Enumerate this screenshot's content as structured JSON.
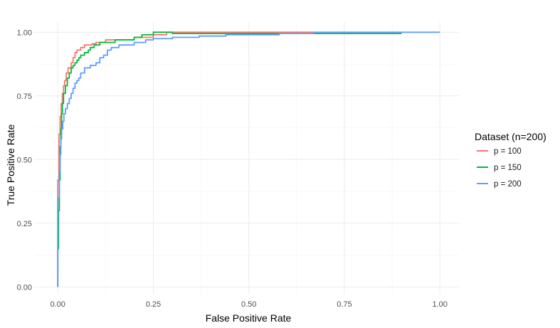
{
  "chart_data": {
    "type": "line",
    "title": "",
    "xlabel": "False Positive Rate",
    "ylabel": "True Positive Rate",
    "xlim": [
      -0.06,
      1.05
    ],
    "ylim": [
      -0.03,
      1.04
    ],
    "x_ticks": [
      0.0,
      0.25,
      0.5,
      0.75,
      1.0
    ],
    "x_tick_labels": [
      "0.00",
      "0.25",
      "0.50",
      "0.75",
      "1.00"
    ],
    "y_ticks": [
      0.0,
      0.25,
      0.5,
      0.75,
      1.0
    ],
    "y_tick_labels": [
      "0.00",
      "0.25",
      "0.50",
      "0.75",
      "1.00"
    ],
    "grid": true,
    "legend": {
      "title": "Dataset (n=200)",
      "placement": "right"
    },
    "series": [
      {
        "name": "p = 100",
        "color": "#F8766D",
        "points": [
          [
            0,
            0
          ],
          [
            0,
            0.42
          ],
          [
            0.003,
            0.42
          ],
          [
            0.003,
            0.6
          ],
          [
            0.006,
            0.6
          ],
          [
            0.006,
            0.67
          ],
          [
            0.009,
            0.67
          ],
          [
            0.009,
            0.72
          ],
          [
            0.012,
            0.72
          ],
          [
            0.012,
            0.76
          ],
          [
            0.015,
            0.76
          ],
          [
            0.015,
            0.79
          ],
          [
            0.018,
            0.79
          ],
          [
            0.018,
            0.81
          ],
          [
            0.022,
            0.81
          ],
          [
            0.022,
            0.84
          ],
          [
            0.027,
            0.84
          ],
          [
            0.027,
            0.86
          ],
          [
            0.035,
            0.86
          ],
          [
            0.035,
            0.88
          ],
          [
            0.04,
            0.88
          ],
          [
            0.04,
            0.9
          ],
          [
            0.045,
            0.9
          ],
          [
            0.045,
            0.92
          ],
          [
            0.05,
            0.92
          ],
          [
            0.05,
            0.93
          ],
          [
            0.06,
            0.93
          ],
          [
            0.06,
            0.94
          ],
          [
            0.07,
            0.94
          ],
          [
            0.07,
            0.95
          ],
          [
            0.09,
            0.95
          ],
          [
            0.09,
            0.955
          ],
          [
            0.1,
            0.955
          ],
          [
            0.1,
            0.96
          ],
          [
            0.125,
            0.96
          ],
          [
            0.125,
            0.97
          ],
          [
            0.2,
            0.97
          ],
          [
            0.2,
            0.98
          ],
          [
            0.25,
            0.98
          ],
          [
            0.25,
            0.99
          ],
          [
            0.285,
            0.99
          ],
          [
            0.285,
            1.0
          ],
          [
            0.67,
            1.0
          ]
        ]
      },
      {
        "name": "p = 150",
        "color": "#00BA38",
        "points": [
          [
            0,
            0
          ],
          [
            0,
            0.15
          ],
          [
            0.002,
            0.15
          ],
          [
            0.002,
            0.3
          ],
          [
            0.004,
            0.3
          ],
          [
            0.004,
            0.42
          ],
          [
            0.006,
            0.42
          ],
          [
            0.006,
            0.55
          ],
          [
            0.008,
            0.55
          ],
          [
            0.008,
            0.62
          ],
          [
            0.01,
            0.62
          ],
          [
            0.01,
            0.68
          ],
          [
            0.012,
            0.68
          ],
          [
            0.012,
            0.72
          ],
          [
            0.015,
            0.72
          ],
          [
            0.015,
            0.76
          ],
          [
            0.02,
            0.76
          ],
          [
            0.02,
            0.79
          ],
          [
            0.025,
            0.79
          ],
          [
            0.025,
            0.82
          ],
          [
            0.03,
            0.82
          ],
          [
            0.03,
            0.84
          ],
          [
            0.035,
            0.84
          ],
          [
            0.035,
            0.86
          ],
          [
            0.04,
            0.86
          ],
          [
            0.04,
            0.87
          ],
          [
            0.045,
            0.87
          ],
          [
            0.045,
            0.88
          ],
          [
            0.05,
            0.88
          ],
          [
            0.05,
            0.89
          ],
          [
            0.055,
            0.89
          ],
          [
            0.055,
            0.9
          ],
          [
            0.06,
            0.9
          ],
          [
            0.06,
            0.91
          ],
          [
            0.07,
            0.91
          ],
          [
            0.07,
            0.92
          ],
          [
            0.08,
            0.92
          ],
          [
            0.08,
            0.93
          ],
          [
            0.085,
            0.93
          ],
          [
            0.085,
            0.94
          ],
          [
            0.095,
            0.94
          ],
          [
            0.095,
            0.95
          ],
          [
            0.11,
            0.95
          ],
          [
            0.11,
            0.96
          ],
          [
            0.15,
            0.96
          ],
          [
            0.15,
            0.97
          ],
          [
            0.2,
            0.97
          ],
          [
            0.2,
            0.98
          ],
          [
            0.22,
            0.98
          ],
          [
            0.22,
            0.99
          ],
          [
            0.25,
            0.99
          ],
          [
            0.25,
            1.0
          ],
          [
            0.3,
            1.0
          ],
          [
            0.3,
            0.995
          ],
          [
            0.9,
            0.995
          ]
        ]
      },
      {
        "name": "p = 200",
        "color": "#619CFF",
        "points": [
          [
            0,
            0
          ],
          [
            0,
            0.35
          ],
          [
            0.004,
            0.35
          ],
          [
            0.004,
            0.45
          ],
          [
            0.006,
            0.45
          ],
          [
            0.006,
            0.52
          ],
          [
            0.008,
            0.52
          ],
          [
            0.008,
            0.58
          ],
          [
            0.01,
            0.58
          ],
          [
            0.01,
            0.62
          ],
          [
            0.013,
            0.62
          ],
          [
            0.013,
            0.65
          ],
          [
            0.016,
            0.65
          ],
          [
            0.016,
            0.68
          ],
          [
            0.02,
            0.68
          ],
          [
            0.02,
            0.7
          ],
          [
            0.025,
            0.7
          ],
          [
            0.025,
            0.72
          ],
          [
            0.03,
            0.72
          ],
          [
            0.03,
            0.74
          ],
          [
            0.035,
            0.74
          ],
          [
            0.035,
            0.76
          ],
          [
            0.04,
            0.76
          ],
          [
            0.04,
            0.78
          ],
          [
            0.045,
            0.78
          ],
          [
            0.045,
            0.8
          ],
          [
            0.05,
            0.8
          ],
          [
            0.05,
            0.81
          ],
          [
            0.055,
            0.81
          ],
          [
            0.055,
            0.82
          ],
          [
            0.06,
            0.82
          ],
          [
            0.06,
            0.84
          ],
          [
            0.07,
            0.84
          ],
          [
            0.07,
            0.86
          ],
          [
            0.085,
            0.86
          ],
          [
            0.085,
            0.87
          ],
          [
            0.1,
            0.87
          ],
          [
            0.1,
            0.88
          ],
          [
            0.11,
            0.88
          ],
          [
            0.11,
            0.9
          ],
          [
            0.12,
            0.9
          ],
          [
            0.12,
            0.91
          ],
          [
            0.13,
            0.91
          ],
          [
            0.13,
            0.93
          ],
          [
            0.14,
            0.93
          ],
          [
            0.14,
            0.94
          ],
          [
            0.16,
            0.94
          ],
          [
            0.16,
            0.95
          ],
          [
            0.2,
            0.95
          ],
          [
            0.2,
            0.96
          ],
          [
            0.23,
            0.96
          ],
          [
            0.23,
            0.97
          ],
          [
            0.25,
            0.97
          ],
          [
            0.25,
            0.975
          ],
          [
            0.3,
            0.975
          ],
          [
            0.3,
            0.98
          ],
          [
            0.37,
            0.98
          ],
          [
            0.37,
            0.985
          ],
          [
            0.44,
            0.985
          ],
          [
            0.44,
            0.99
          ],
          [
            0.58,
            0.99
          ],
          [
            0.58,
            0.995
          ],
          [
            0.67,
            0.995
          ],
          [
            0.67,
            1.0
          ],
          [
            1.0,
            1.0
          ]
        ]
      }
    ]
  }
}
